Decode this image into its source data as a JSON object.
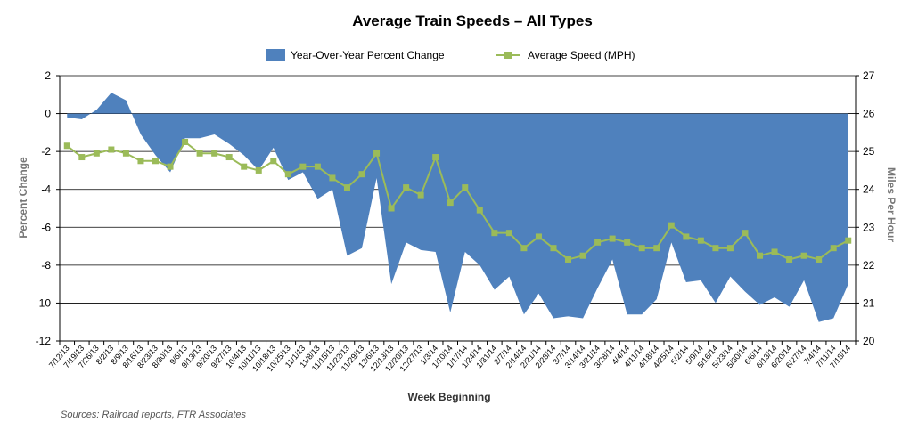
{
  "chart_data": {
    "type": "area+line",
    "title": "Average Train Speeds – All Types",
    "xlabel": "Week Beginning",
    "ylabel_left": "Percent Change",
    "ylabel_right": "Miles Per Hour",
    "source": "Sources: Railroad reports, FTR Associates",
    "ylim_left": [
      -12,
      2
    ],
    "yticks_left": [
      "2",
      "0",
      "-2",
      "-4",
      "-6",
      "-8",
      "-10",
      "-12"
    ],
    "ylim_right": [
      20,
      27
    ],
    "yticks_right": [
      "27",
      "26",
      "25",
      "24",
      "23",
      "22",
      "21",
      "20"
    ],
    "legend": {
      "placement": "top-center"
    },
    "x": [
      "7/12/13",
      "7/19/13",
      "7/26/13",
      "8/2/13",
      "8/9/13",
      "8/16/13",
      "8/23/13",
      "8/30/13",
      "9/6/13",
      "9/13/13",
      "9/20/13",
      "9/27/13",
      "10/4/13",
      "10/11/13",
      "10/18/13",
      "10/25/13",
      "11/1/13",
      "11/8/13",
      "11/15/13",
      "11/22/13",
      "11/29/13",
      "12/6/13",
      "12/13/13",
      "12/20/13",
      "12/27/13",
      "1/3/14",
      "1/10/14",
      "1/17/14",
      "1/24/14",
      "1/31/14",
      "2/7/14",
      "2/14/14",
      "2/21/14",
      "2/28/14",
      "3/7/14",
      "3/14/14",
      "3/21/14",
      "3/28/14",
      "4/4/14",
      "4/11/14",
      "4/18/14",
      "4/25/14",
      "5/2/14",
      "5/9/14",
      "5/16/14",
      "5/23/14",
      "5/30/14",
      "6/6/14",
      "6/13/14",
      "6/20/14",
      "6/27/14",
      "7/4/14",
      "7/11/14",
      "7/18/14"
    ],
    "xtick_labels": [
      "7/12/13",
      "7/19/13",
      "7/26/13",
      "8/2/13",
      "8/9/13",
      "8/16/13",
      "8/23/13",
      "8/30/13",
      "9/6/13",
      "9/13/13",
      "9/20/13",
      "9/27/13",
      "10/4/13",
      "10/11/13",
      "10/18/13",
      "10/25/13",
      "11/1/13",
      "11/8/13",
      "11/15/13",
      "11/22/13",
      "11/29/13",
      "12/6/13",
      "12/13/13",
      "12/20/13",
      "12/27/13",
      "1/3/14",
      "1/10/14",
      "1/17/14",
      "1/24/14",
      "1/31/14",
      "2/7/14",
      "2/14/14",
      "2/21/14",
      "2/28/14",
      "3/7/14",
      "3/14/14",
      "3/21/14",
      "3/28/14",
      "4/4/14",
      "4/11/14",
      "4/18/14",
      "4/25/14",
      "5/2/14",
      "5/9/14",
      "5/16/14",
      "5/23/14",
      "5/30/14",
      "6/6/14",
      "6/13/14",
      "6/20/14",
      "6/27/14",
      "7/4/14",
      "7/11/14",
      "7/18/14"
    ],
    "series": [
      {
        "name": "Year-Over-Year Percent Change",
        "axis": "left",
        "type": "area",
        "color": "#4f81bd",
        "values": [
          -0.2,
          -0.3,
          0.2,
          1.1,
          0.7,
          -1.1,
          -2.2,
          -3.1,
          -1.3,
          -1.3,
          -1.1,
          -1.6,
          -2.2,
          -3.0,
          -1.8,
          -3.5,
          -3.1,
          -4.5,
          -4.0,
          -7.5,
          -7.1,
          -3.4,
          -9.0,
          -6.8,
          -7.2,
          -7.3,
          -10.5,
          -7.3,
          -8.0,
          -9.3,
          -8.6,
          -10.6,
          -9.5,
          -10.8,
          -10.7,
          -10.8,
          -9.2,
          -7.7,
          -10.6,
          -10.6,
          -9.8,
          -6.8,
          -8.9,
          -8.8,
          -10.0,
          -8.6,
          -9.4,
          -10.1,
          -9.7,
          -10.2,
          -8.8,
          -11.0,
          -10.8,
          -9.0
        ]
      },
      {
        "name": "Average Speed (MPH)",
        "axis": "right",
        "type": "line",
        "color": "#9bbb59",
        "values": [
          25.15,
          24.85,
          24.95,
          25.05,
          24.95,
          24.75,
          24.75,
          24.6,
          25.25,
          24.95,
          24.95,
          24.85,
          24.6,
          24.5,
          24.75,
          24.4,
          24.6,
          24.6,
          24.3,
          24.05,
          24.4,
          24.95,
          23.5,
          24.05,
          23.85,
          24.85,
          23.65,
          24.05,
          23.45,
          22.85,
          22.85,
          22.45,
          22.75,
          22.45,
          22.15,
          22.25,
          22.6,
          22.7,
          22.6,
          22.45,
          22.45,
          23.05,
          22.75,
          22.65,
          22.45,
          22.45,
          22.85,
          22.25,
          22.35,
          22.15,
          22.25,
          22.15,
          22.45,
          22.65
        ]
      }
    ]
  }
}
